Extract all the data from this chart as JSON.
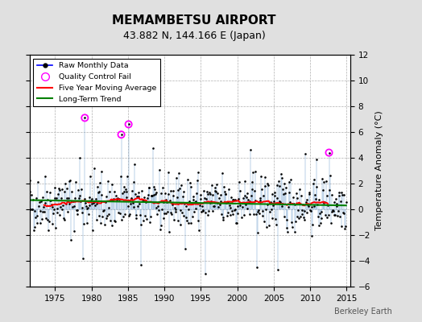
{
  "title": "MEMAMBETSU AIRPORT",
  "subtitle": "43.882 N, 144.166 E (Japan)",
  "ylabel": "Temperature Anomaly (°C)",
  "ylim": [
    -6,
    12
  ],
  "yticks": [
    -6,
    -4,
    -2,
    0,
    2,
    4,
    6,
    8,
    10,
    12
  ],
  "xlim": [
    1971.5,
    2015.5
  ],
  "xticks": [
    1975,
    1980,
    1985,
    1990,
    1995,
    2000,
    2005,
    2010,
    2015
  ],
  "bg_color": "#e0e0e0",
  "plot_bg_color": "#ffffff",
  "seed": 42,
  "start_year": 1971,
  "n_months": 528,
  "qc_fail_indices": [
    97,
    157,
    169,
    499
  ],
  "anomaly_values": {},
  "watermark": "Berkeley Earth",
  "title_fontsize": 11,
  "subtitle_fontsize": 9
}
